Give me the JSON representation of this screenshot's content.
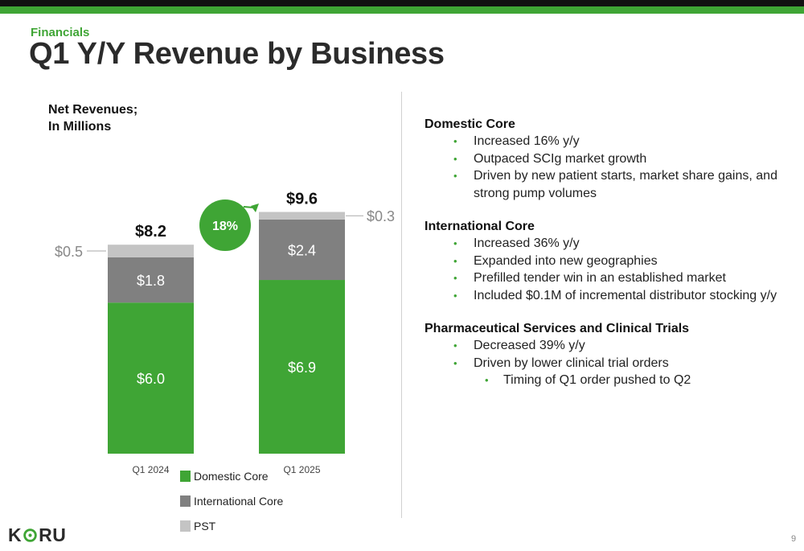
{
  "header": {
    "section_label": "Financials",
    "title": "Q1 Y/Y Revenue by Business"
  },
  "colors": {
    "brand_green": "#3fa535",
    "domestic_core": "#3fa535",
    "international_core": "#808080",
    "pst": "#c4c4c4",
    "top_bar": "#111111"
  },
  "chart_data": {
    "type": "bar",
    "stacked": true,
    "title": [
      "Net Revenues;",
      "In Millions"
    ],
    "categories": [
      "Q1 2024",
      "Q1 2025"
    ],
    "series": [
      {
        "name": "Domestic Core",
        "values": [
          6.0,
          6.9
        ],
        "labels": [
          "$6.0",
          "$6.9"
        ],
        "color": "#3fa535"
      },
      {
        "name": "International Core",
        "values": [
          1.8,
          2.4
        ],
        "labels": [
          "$1.8",
          "$2.4"
        ],
        "color": "#808080"
      },
      {
        "name": "PST",
        "values": [
          0.5,
          0.3
        ],
        "labels": [
          "$0.5",
          "$0.3"
        ],
        "color": "#c4c4c4"
      }
    ],
    "totals": [
      "$8.2",
      "$9.6"
    ],
    "growth_badge": "18%",
    "ylim": [
      0,
      10
    ],
    "grid": false,
    "legend_position": "bottom"
  },
  "commentary": [
    {
      "heading": "Domestic Core",
      "bullets": [
        {
          "level": 1,
          "text": "Increased 16% y/y"
        },
        {
          "level": 1,
          "text": "Outpaced SCIg market growth"
        },
        {
          "level": 1,
          "text": "Driven by new patient starts, market share gains, and strong pump volumes"
        }
      ]
    },
    {
      "heading": "International Core",
      "bullets": [
        {
          "level": 1,
          "text": "Increased 36% y/y"
        },
        {
          "level": 1,
          "text": "Expanded into new geographies"
        },
        {
          "level": 1,
          "text": "Prefilled tender win in an established market"
        },
        {
          "level": 1,
          "text": "Included $0.1M of incremental distributor stocking y/y"
        }
      ]
    },
    {
      "heading": "Pharmaceutical Services and Clinical Trials",
      "bullets": [
        {
          "level": 1,
          "text": "Decreased 39% y/y"
        },
        {
          "level": 1,
          "text": "Driven by lower clinical trial orders"
        },
        {
          "level": 2,
          "text": "Timing of Q1 order pushed to Q2"
        }
      ]
    }
  ],
  "footer": {
    "logo_text_left": "K",
    "logo_text_right": "RU",
    "page_number": "9"
  }
}
